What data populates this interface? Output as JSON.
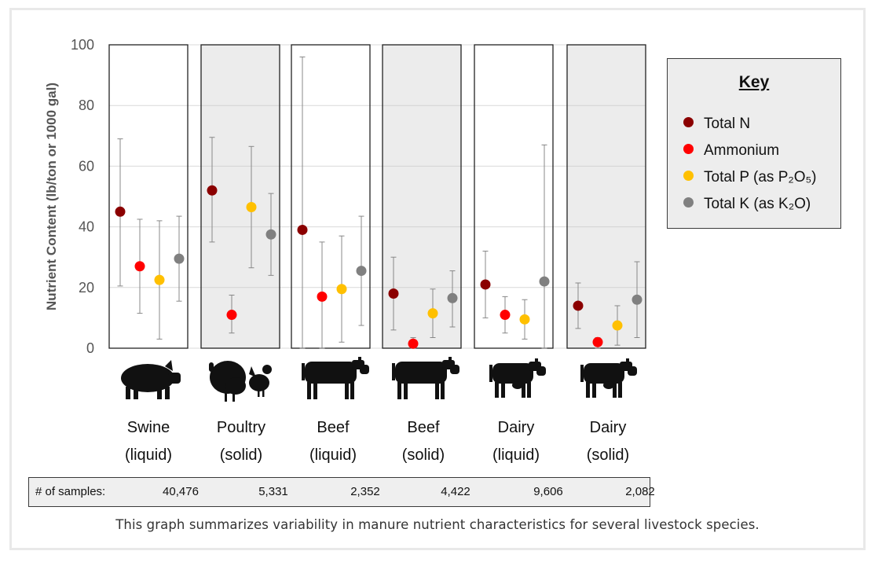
{
  "chart_data": {
    "type": "scatter",
    "ylabel": "Nutrient Content (lb/ton or 1000 gal)",
    "ylim": [
      0,
      100
    ],
    "yticks": [
      0,
      20,
      40,
      60,
      80,
      100
    ],
    "grid": true,
    "legend": {
      "title": "Key",
      "placement": "right",
      "entries": [
        {
          "label": "Total N",
          "color": "#8b0000"
        },
        {
          "label": "Ammonium",
          "color": "#ff0000"
        },
        {
          "label": "Total P (as P₂O₅)",
          "color": "#ffc000"
        },
        {
          "label": "Total K (as K₂O)",
          "color": "#808080"
        }
      ]
    },
    "series_names": [
      "Total N",
      "Ammonium",
      "Total P (as P₂O₅)",
      "Total K (as K₂O)"
    ],
    "series_colors": [
      "#8b0000",
      "#ff0000",
      "#ffc000",
      "#808080"
    ],
    "categories": [
      {
        "line1": "Swine",
        "line2": "(liquid)",
        "icon": "pig-icon",
        "shaded": false,
        "values": [
          45,
          27,
          22.5,
          29.5
        ],
        "error_low": [
          20.5,
          11.5,
          3,
          15.5
        ],
        "error_high": [
          69,
          42.5,
          42,
          43.5
        ]
      },
      {
        "line1": "Poultry",
        "line2": "(solid)",
        "icon": "turkey-chicken-icon",
        "shaded": true,
        "values": [
          52,
          11,
          46.5,
          37.5
        ],
        "error_low": [
          35,
          5,
          26.5,
          24
        ],
        "error_high": [
          69.5,
          17.5,
          66.5,
          51
        ]
      },
      {
        "line1": "Beef",
        "line2": "(liquid)",
        "icon": "beef-cow-icon",
        "shaded": false,
        "values": [
          39,
          17,
          19.5,
          25.5
        ],
        "error_low": [
          0,
          0,
          2,
          7.5
        ],
        "error_high": [
          96,
          35,
          37,
          43.5
        ]
      },
      {
        "line1": "Beef",
        "line2": "(solid)",
        "icon": "beef-cow-icon",
        "shaded": true,
        "values": [
          18,
          1.5,
          11.5,
          16.5
        ],
        "error_low": [
          6,
          0,
          3.5,
          7
        ],
        "error_high": [
          30,
          3.5,
          19.5,
          25.5
        ]
      },
      {
        "line1": "Dairy",
        "line2": "(liquid)",
        "icon": "dairy-cow-icon",
        "shaded": false,
        "values": [
          21,
          11,
          9.5,
          22
        ],
        "error_low": [
          10,
          5,
          3,
          0
        ],
        "error_high": [
          32,
          17,
          16,
          67
        ]
      },
      {
        "line1": "Dairy",
        "line2": "(solid)",
        "icon": "dairy-cow-icon",
        "shaded": true,
        "values": [
          14,
          2,
          7.5,
          16
        ],
        "error_low": [
          6.5,
          0,
          1,
          3.5
        ],
        "error_high": [
          21.5,
          3.5,
          14,
          28.5
        ]
      }
    ]
  },
  "samples": {
    "label": "# of samples:",
    "values": [
      "40,476",
      "5,331",
      "2,352",
      "4,422",
      "9,606",
      "2,082"
    ]
  },
  "caption": "This graph summarizes variability in manure nutrient characteristics for several livestock species."
}
